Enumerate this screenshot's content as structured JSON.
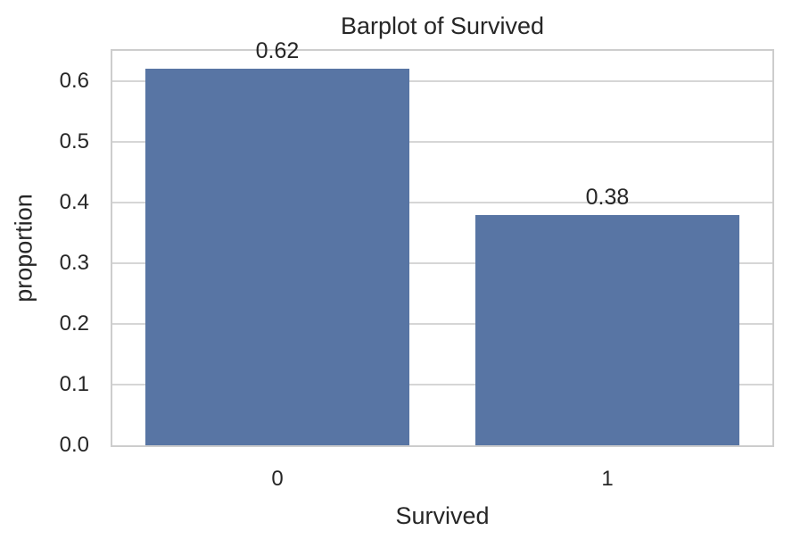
{
  "chart_data": {
    "type": "bar",
    "title": "Barplot of Survived",
    "xlabel": "Survived",
    "ylabel": "proportion",
    "categories": [
      "0",
      "1"
    ],
    "values": [
      0.62,
      0.38
    ],
    "bar_value_labels": [
      "0.62",
      "0.38"
    ],
    "yticks": [
      0.0,
      0.1,
      0.2,
      0.3,
      0.4,
      0.5,
      0.6
    ],
    "ytick_labels": [
      "0.0",
      "0.1",
      "0.2",
      "0.3",
      "0.4",
      "0.5",
      "0.6"
    ],
    "ylim": [
      0,
      0.65
    ],
    "grid": "horizontal",
    "legend": "none",
    "colors": {
      "bar_fill": "#5875A4",
      "grid_line": "#d6d6d6",
      "spine": "#cdcdcd",
      "text": "#262626"
    }
  }
}
